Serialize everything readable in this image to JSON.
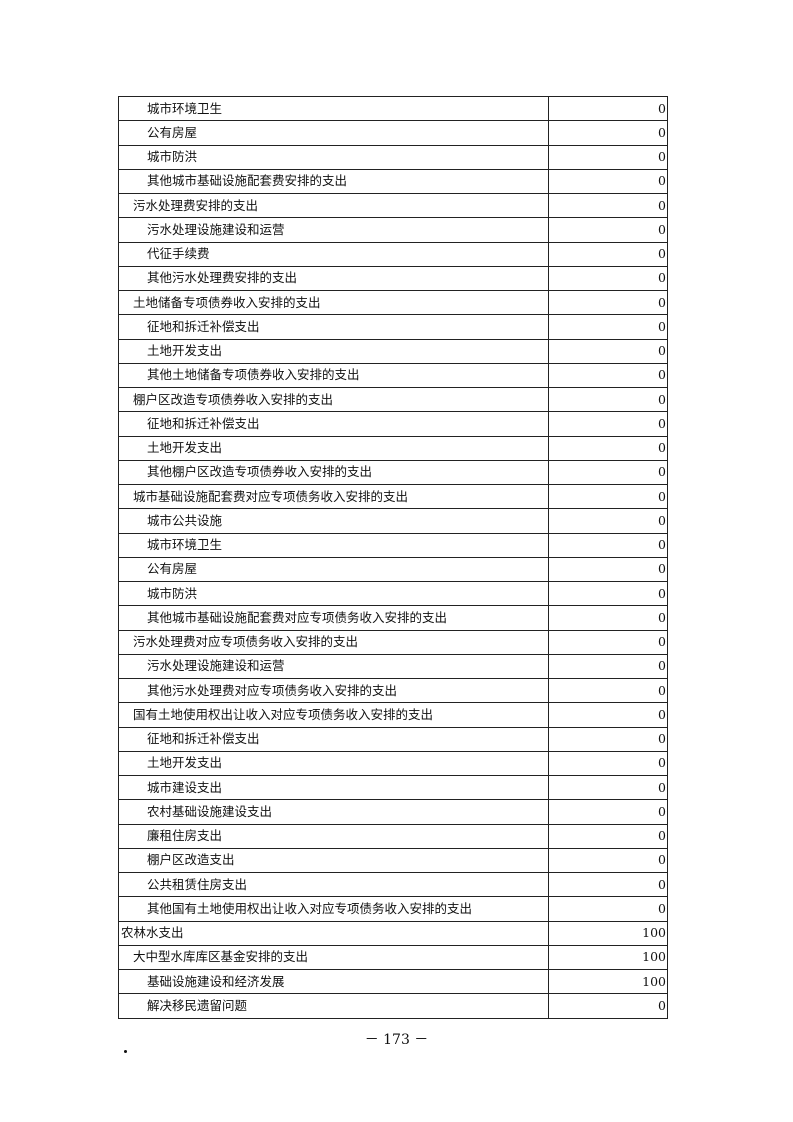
{
  "table": {
    "rows": [
      {
        "label": "城市环境卫生",
        "level": 2,
        "value": "0"
      },
      {
        "label": "公有房屋",
        "level": 2,
        "value": "0"
      },
      {
        "label": "城市防洪",
        "level": 2,
        "value": "0"
      },
      {
        "label": "其他城市基础设施配套费安排的支出",
        "level": 2,
        "value": "0"
      },
      {
        "label": "污水处理费安排的支出",
        "level": 1,
        "value": "0"
      },
      {
        "label": "污水处理设施建设和运营",
        "level": 2,
        "value": "0"
      },
      {
        "label": "代征手续费",
        "level": 2,
        "value": "0"
      },
      {
        "label": "其他污水处理费安排的支出",
        "level": 2,
        "value": "0"
      },
      {
        "label": "土地储备专项债券收入安排的支出",
        "level": 1,
        "value": "0"
      },
      {
        "label": "征地和拆迁补偿支出",
        "level": 2,
        "value": "0"
      },
      {
        "label": "土地开发支出",
        "level": 2,
        "value": "0"
      },
      {
        "label": "其他土地储备专项债券收入安排的支出",
        "level": 2,
        "value": "0"
      },
      {
        "label": "棚户区改造专项债券收入安排的支出",
        "level": 1,
        "value": "0"
      },
      {
        "label": "征地和拆迁补偿支出",
        "level": 2,
        "value": "0"
      },
      {
        "label": "土地开发支出",
        "level": 2,
        "value": "0"
      },
      {
        "label": "其他棚户区改造专项债券收入安排的支出",
        "level": 2,
        "value": "0"
      },
      {
        "label": "城市基础设施配套费对应专项债务收入安排的支出",
        "level": 1,
        "value": "0"
      },
      {
        "label": "城市公共设施",
        "level": 2,
        "value": "0"
      },
      {
        "label": "城市环境卫生",
        "level": 2,
        "value": "0"
      },
      {
        "label": "公有房屋",
        "level": 2,
        "value": "0"
      },
      {
        "label": "城市防洪",
        "level": 2,
        "value": "0"
      },
      {
        "label": "其他城市基础设施配套费对应专项债务收入安排的支出",
        "level": 2,
        "value": "0"
      },
      {
        "label": "污水处理费对应专项债务收入安排的支出",
        "level": 1,
        "value": "0"
      },
      {
        "label": "污水处理设施建设和运营",
        "level": 2,
        "value": "0"
      },
      {
        "label": "其他污水处理费对应专项债务收入安排的支出",
        "level": 2,
        "value": "0"
      },
      {
        "label": "国有土地使用权出让收入对应专项债务收入安排的支出",
        "level": 1,
        "value": "0"
      },
      {
        "label": "征地和拆迁补偿支出",
        "level": 2,
        "value": "0"
      },
      {
        "label": "土地开发支出",
        "level": 2,
        "value": "0"
      },
      {
        "label": "城市建设支出",
        "level": 2,
        "value": "0"
      },
      {
        "label": "农村基础设施建设支出",
        "level": 2,
        "value": "0"
      },
      {
        "label": "廉租住房支出",
        "level": 2,
        "value": "0"
      },
      {
        "label": "棚户区改造支出",
        "level": 2,
        "value": "0"
      },
      {
        "label": "公共租赁住房支出",
        "level": 2,
        "value": "0"
      },
      {
        "label": "其他国有土地使用权出让收入对应专项债务收入安排的支出",
        "level": 2,
        "value": "0"
      },
      {
        "label": "农林水支出",
        "level": 0,
        "value": "100"
      },
      {
        "label": "大中型水库库区基金安排的支出",
        "level": 1,
        "value": "100"
      },
      {
        "label": "基础设施建设和经济发展",
        "level": 2,
        "value": "100"
      },
      {
        "label": "解决移民遗留问题",
        "level": 2,
        "value": "0"
      }
    ]
  },
  "footer": {
    "page_number": "－ 173 －"
  }
}
